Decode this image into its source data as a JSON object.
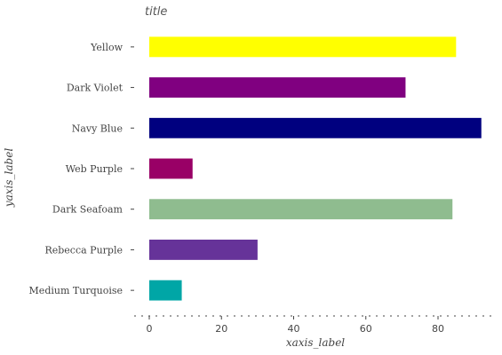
{
  "chart_data": {
    "type": "bar",
    "orientation": "horizontal",
    "title": "title",
    "xlabel": "xaxis_label",
    "ylabel": "yaxis_label",
    "categories": [
      "Medium Turquoise",
      "Rebecca Purple",
      "Dark Seafoam",
      "Web Purple",
      "Navy Blue",
      "Dark Violet",
      "Yellow"
    ],
    "values": [
      9,
      30,
      84,
      12,
      92,
      71,
      85
    ],
    "colors": [
      "#00A6A6",
      "#663399",
      "#8FBC8F",
      "#990066",
      "#00007F",
      "#800080",
      "#FFFF00"
    ],
    "xlim": [
      -4,
      95
    ],
    "xticks": [
      0,
      20,
      40,
      60,
      80
    ],
    "grid": false,
    "legend": "none"
  }
}
